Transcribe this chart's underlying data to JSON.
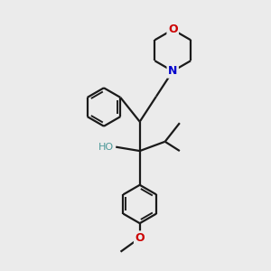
{
  "bg_color": "#ebebeb",
  "bond_color": "#1a1a1a",
  "O_color": "#cc0000",
  "N_color": "#0000cc",
  "OH_color": "#4d9999",
  "line_width": 1.6,
  "figsize": [
    3.0,
    3.0
  ],
  "dpi": 100,
  "xlim": [
    0,
    10
  ],
  "ylim": [
    0,
    10
  ]
}
